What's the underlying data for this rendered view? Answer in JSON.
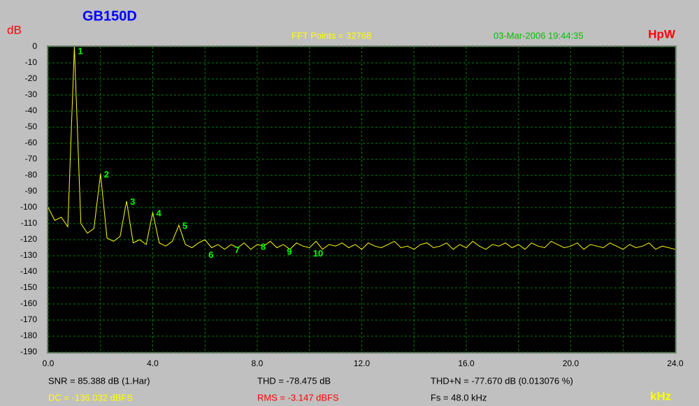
{
  "chart_data": {
    "type": "line",
    "title": "GB150D",
    "y_label": "dB",
    "x_label": "kHz",
    "info": "FFT Points = 32768",
    "timestamp": "03-Mar-2006 19:44:35",
    "brand": "HpW",
    "color": "#ffff00",
    "grid": true,
    "grid_color": "#008000",
    "ylim": [
      -190,
      0
    ],
    "yticks": [
      0,
      -10,
      -20,
      -30,
      -40,
      -50,
      -60,
      -70,
      -80,
      -90,
      -100,
      -110,
      -120,
      -130,
      -140,
      -150,
      -160,
      -170,
      -180,
      -190
    ],
    "xlim": [
      0,
      24
    ],
    "xticks": [
      {
        "value": 0,
        "label": "0.0"
      },
      {
        "value": 4,
        "label": "4.0"
      },
      {
        "value": 8,
        "label": "8.0"
      },
      {
        "value": 12,
        "label": "12.0"
      },
      {
        "value": 16,
        "label": "16.0"
      },
      {
        "value": 20,
        "label": "20.0"
      },
      {
        "value": 24,
        "label": "24.0"
      }
    ],
    "xminor_ticks": [
      2,
      6,
      10,
      14,
      18,
      22
    ],
    "x": [
      0,
      0.25,
      0.5,
      0.75,
      1,
      1.25,
      1.5,
      1.75,
      2,
      2.25,
      2.5,
      2.75,
      3,
      3.25,
      3.5,
      3.75,
      4,
      4.25,
      4.5,
      4.75,
      5,
      5.25,
      5.5,
      5.75,
      6,
      6.25,
      6.5,
      6.75,
      7,
      7.25,
      7.5,
      7.75,
      8,
      8.25,
      8.5,
      8.75,
      9,
      9.25,
      9.5,
      9.75,
      10,
      10.25,
      10.5,
      10.75,
      11,
      11.25,
      11.5,
      11.75,
      12,
      12.25,
      12.5,
      12.75,
      13,
      13.25,
      13.5,
      13.75,
      14,
      14.25,
      14.5,
      14.75,
      15,
      15.25,
      15.5,
      15.75,
      16,
      16.25,
      16.5,
      16.75,
      17,
      17.25,
      17.5,
      17.75,
      18,
      18.25,
      18.5,
      18.75,
      19,
      19.25,
      19.5,
      19.75,
      20,
      20.25,
      20.5,
      20.75,
      21,
      21.25,
      21.5,
      21.75,
      22,
      22.25,
      22.5,
      22.75,
      23,
      23.25,
      23.5,
      23.75,
      24
    ],
    "values": [
      -100,
      -108,
      -106,
      -112,
      0,
      -110,
      -116,
      -113,
      -79,
      -119,
      -121,
      -118,
      -96,
      -122,
      -120,
      -123,
      -103,
      -122,
      -124,
      -121,
      -111,
      -123,
      -125,
      -122,
      -120,
      -125,
      -123,
      -126,
      -123,
      -125,
      -122,
      -126,
      -123,
      -124,
      -121,
      -125,
      -123,
      -126,
      -122,
      -124,
      -125,
      -121,
      -126,
      -123,
      -124,
      -122,
      -125,
      -123,
      -126,
      -122,
      -124,
      -125,
      -123,
      -121,
      -125,
      -124,
      -126,
      -123,
      -122,
      -125,
      -124,
      -122,
      -126,
      -123,
      -125,
      -121,
      -124,
      -126,
      -123,
      -124,
      -122,
      -125,
      -123,
      -126,
      -122,
      -124,
      -125,
      -121,
      -123,
      -125,
      -124,
      -122,
      -126,
      -123,
      -124,
      -125,
      -122,
      -124,
      -126,
      -123,
      -125,
      -124,
      -122,
      -126,
      -124,
      -125,
      -126
    ],
    "harmonics": {
      "labels": [
        "1",
        "2",
        "3",
        "4",
        "5",
        "6",
        "7",
        "8",
        "9",
        "10"
      ],
      "x": [
        1,
        2,
        3,
        4,
        5,
        6,
        7,
        8,
        9,
        10
      ],
      "y": [
        0,
        -79,
        -96,
        -103,
        -111,
        -129,
        -126,
        -124,
        -127,
        -128
      ]
    },
    "stats": [
      "SNR = 85.388 dB (1.Har)",
      "THD = -78.475 dB",
      "THD+N = -77.670 dB (0.013076 %)",
      "DC = -136.032 dBFS",
      "RMS = -3.147 dBFS",
      "Fs = 48.0 kHz"
    ]
  }
}
